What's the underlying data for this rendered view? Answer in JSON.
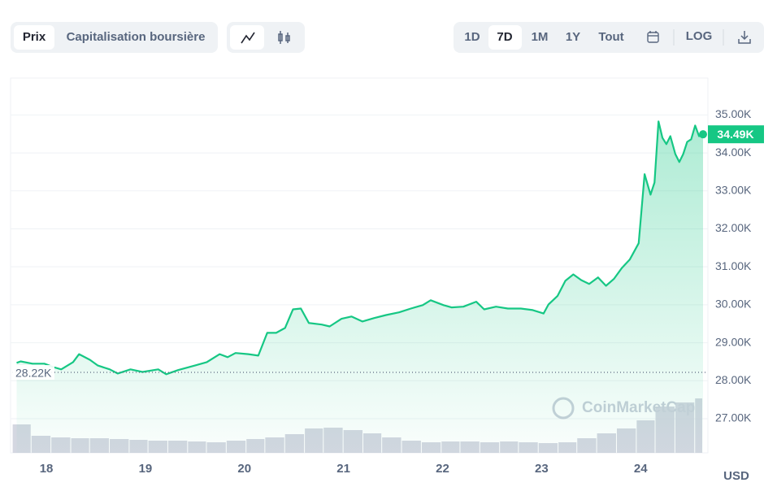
{
  "toolbar": {
    "tabs": [
      "Prix",
      "Capitalisation boursière"
    ],
    "ranges": [
      "1D",
      "7D",
      "1M",
      "1Y",
      "Tout"
    ],
    "log": "LOG"
  },
  "chart_data": {
    "type": "line",
    "color": "#16c784",
    "currency": "USD",
    "watermark": "CoinMarketCap",
    "xlim": [
      17.655,
      24.63
    ],
    "xticks": [
      18,
      19,
      20,
      21,
      22,
      23,
      24
    ],
    "ylim": [
      26100,
      35950
    ],
    "yticks": [
      {
        "value": 27000,
        "label": "27.00K"
      },
      {
        "value": 28000,
        "label": "28.00K"
      },
      {
        "value": 29000,
        "label": "29.00K"
      },
      {
        "value": 30000,
        "label": "30.00K"
      },
      {
        "value": 31000,
        "label": "31.00K"
      },
      {
        "value": 32000,
        "label": "32.00K"
      },
      {
        "value": 33000,
        "label": "33.00K"
      },
      {
        "value": 34000,
        "label": "34.00K"
      },
      {
        "value": 35000,
        "label": "35.00K"
      }
    ],
    "grid": true,
    "x": [
      17.7,
      17.74,
      17.86,
      17.98,
      18.07,
      18.15,
      18.27,
      18.33,
      18.44,
      18.52,
      18.64,
      18.72,
      18.85,
      18.97,
      19.13,
      19.21,
      19.33,
      19.5,
      19.62,
      19.75,
      19.83,
      19.91,
      20.04,
      20.14,
      20.23,
      20.32,
      20.41,
      20.49,
      20.57,
      20.65,
      20.78,
      20.86,
      20.98,
      21.08,
      21.19,
      21.31,
      21.43,
      21.56,
      21.68,
      21.8,
      21.88,
      22.01,
      22.09,
      22.21,
      22.34,
      22.42,
      22.54,
      22.66,
      22.79,
      22.91,
      23.02,
      23.07,
      23.16,
      23.24,
      23.32,
      23.4,
      23.48,
      23.57,
      23.65,
      23.73,
      23.81,
      23.89,
      23.98,
      24.04,
      24.1,
      24.14,
      24.18,
      24.22,
      24.26,
      24.3,
      24.35,
      24.39,
      24.43,
      24.47,
      24.51,
      24.55,
      24.59,
      24.63
    ],
    "values": [
      28470,
      28510,
      28450,
      28450,
      28360,
      28300,
      28490,
      28700,
      28550,
      28400,
      28300,
      28190,
      28300,
      28230,
      28300,
      28170,
      28280,
      28400,
      28490,
      28700,
      28620,
      28730,
      28700,
      28660,
      29260,
      29260,
      29390,
      29880,
      29900,
      29520,
      29480,
      29430,
      29630,
      29690,
      29560,
      29650,
      29730,
      29800,
      29900,
      29990,
      30120,
      29990,
      29930,
      29950,
      30080,
      29880,
      29950,
      29900,
      29900,
      29860,
      29770,
      30010,
      30230,
      30630,
      30800,
      30650,
      30550,
      30720,
      30500,
      30680,
      30970,
      31190,
      31620,
      33440,
      32900,
      33220,
      34830,
      34400,
      34230,
      34440,
      33970,
      33760,
      33970,
      34290,
      34360,
      34720,
      34440,
      34490
    ],
    "reference_line": {
      "value": 28220,
      "label": "28.22K"
    },
    "last_price": {
      "value": 34490,
      "label": "34.49K"
    },
    "volume": {
      "color": "#ccd0dc",
      "ylim": [
        0,
        100
      ],
      "x": [
        17.66,
        17.85,
        18.05,
        18.25,
        18.44,
        18.64,
        18.84,
        19.03,
        19.23,
        19.43,
        19.62,
        19.82,
        20.02,
        20.21,
        20.41,
        20.61,
        20.8,
        21.0,
        21.2,
        21.39,
        21.59,
        21.79,
        21.99,
        22.18,
        22.38,
        22.58,
        22.77,
        22.97,
        23.17,
        23.36,
        23.56,
        23.76,
        23.96,
        24.15,
        24.35,
        24.55
      ],
      "values": [
        35,
        21,
        19,
        18,
        18,
        17,
        16,
        15,
        15,
        14,
        13,
        15,
        17,
        19,
        23,
        30,
        31,
        28,
        24,
        19,
        15,
        13,
        14,
        14,
        13,
        14,
        13,
        12,
        13,
        18,
        24,
        30,
        40,
        57,
        62,
        67
      ]
    }
  }
}
